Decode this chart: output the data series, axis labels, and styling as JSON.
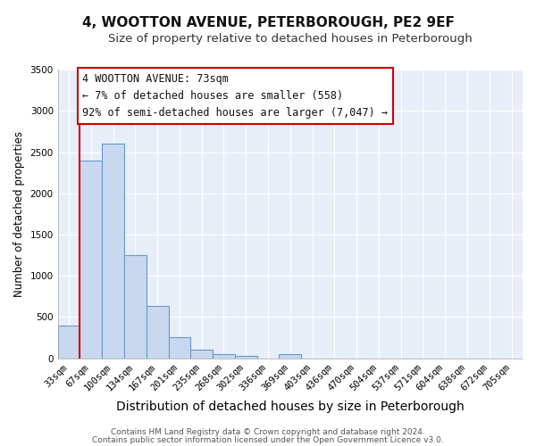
{
  "title": "4, WOOTTON AVENUE, PETERBOROUGH, PE2 9EF",
  "subtitle": "Size of property relative to detached houses in Peterborough",
  "xlabel": "Distribution of detached houses by size in Peterborough",
  "ylabel": "Number of detached properties",
  "bar_labels": [
    "33sqm",
    "67sqm",
    "100sqm",
    "134sqm",
    "167sqm",
    "201sqm",
    "235sqm",
    "268sqm",
    "302sqm",
    "336sqm",
    "369sqm",
    "403sqm",
    "436sqm",
    "470sqm",
    "504sqm",
    "537sqm",
    "571sqm",
    "604sqm",
    "638sqm",
    "672sqm",
    "705sqm"
  ],
  "bar_values": [
    400,
    2400,
    2600,
    1250,
    640,
    260,
    100,
    55,
    30,
    0,
    55,
    0,
    0,
    0,
    0,
    0,
    0,
    0,
    0,
    0,
    0
  ],
  "bar_color": "#c8d8ee",
  "bar_edge_color": "#6699cc",
  "bar_edge_width": 0.8,
  "vline_color": "#cc0000",
  "vline_x_index": 1,
  "ylim": [
    0,
    3500
  ],
  "yticks": [
    0,
    500,
    1000,
    1500,
    2000,
    2500,
    3000,
    3500
  ],
  "annotation_line1": "4 WOOTTON AVENUE: 73sqm",
  "annotation_line2": "← 7% of detached houses are smaller (558)",
  "annotation_line3": "92% of semi-detached houses are larger (7,047) →",
  "annotation_box_color": "#ffffff",
  "annotation_box_edge_color": "#cc0000",
  "annotation_fontsize": 8.5,
  "title_fontsize": 11,
  "subtitle_fontsize": 9.5,
  "xlabel_fontsize": 10,
  "ylabel_fontsize": 8.5,
  "tick_fontsize": 7.5,
  "footer_line1": "Contains HM Land Registry data © Crown copyright and database right 2024.",
  "footer_line2": "Contains public sector information licensed under the Open Government Licence v3.0.",
  "footer_fontsize": 6.5,
  "bg_color": "#ffffff",
  "plot_bg_color": "#e8eef8",
  "grid_color": "#ffffff"
}
